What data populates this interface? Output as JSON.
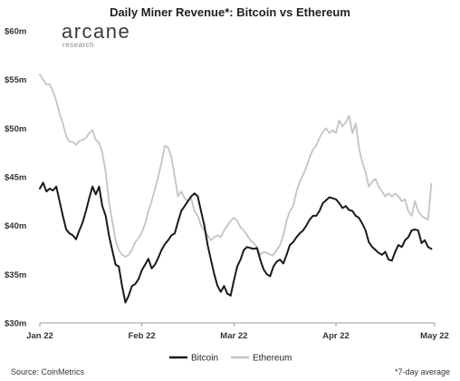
{
  "chart_data": {
    "type": "line",
    "title": "Daily Miner Revenue*: Bitcoin vs Ethereum",
    "xlabel": "",
    "ylabel": "",
    "ylim": [
      30,
      60
    ],
    "y_ticks": [
      {
        "value": 30,
        "label": "$30m"
      },
      {
        "value": 35,
        "label": "$35m"
      },
      {
        "value": 40,
        "label": "$40m"
      },
      {
        "value": 45,
        "label": "$45m"
      },
      {
        "value": 50,
        "label": "$50m"
      },
      {
        "value": 55,
        "label": "$55m"
      },
      {
        "value": 60,
        "label": "$60m"
      }
    ],
    "x_range": [
      "2022-01-01",
      "2022-05-01"
    ],
    "x_ticks": [
      {
        "date": "2022-01-01",
        "label": "Jan 22"
      },
      {
        "date": "2022-02-01",
        "label": "Feb 22"
      },
      {
        "date": "2022-03-01",
        "label": "Mar 22"
      },
      {
        "date": "2022-04-01",
        "label": "Apr 22"
      },
      {
        "date": "2022-05-01",
        "label": "May 22"
      }
    ],
    "legend_position": "bottom-center",
    "grid": false,
    "series": [
      {
        "name": "Bitcoin",
        "color": "#1a1a1a",
        "points": [
          [
            "2022-01-01",
            43.8
          ],
          [
            "2022-01-02",
            44.4
          ],
          [
            "2022-01-03",
            43.5
          ],
          [
            "2022-01-04",
            43.8
          ],
          [
            "2022-01-05",
            43.6
          ],
          [
            "2022-01-06",
            44.0
          ],
          [
            "2022-01-07",
            42.5
          ],
          [
            "2022-01-08",
            41.0
          ],
          [
            "2022-01-09",
            39.6
          ],
          [
            "2022-01-10",
            39.2
          ],
          [
            "2022-01-11",
            39.0
          ],
          [
            "2022-01-12",
            38.6
          ],
          [
            "2022-01-13",
            39.5
          ],
          [
            "2022-01-14",
            40.3
          ],
          [
            "2022-01-15",
            41.5
          ],
          [
            "2022-01-16",
            42.8
          ],
          [
            "2022-01-17",
            44.0
          ],
          [
            "2022-01-18",
            43.2
          ],
          [
            "2022-01-19",
            44.0
          ],
          [
            "2022-01-20",
            42.0
          ],
          [
            "2022-01-21",
            41.0
          ],
          [
            "2022-01-22",
            39.0
          ],
          [
            "2022-01-23",
            37.5
          ],
          [
            "2022-01-24",
            36.0
          ],
          [
            "2022-01-25",
            35.8
          ],
          [
            "2022-01-26",
            33.8
          ],
          [
            "2022-01-27",
            32.1
          ],
          [
            "2022-01-28",
            32.8
          ],
          [
            "2022-01-29",
            33.8
          ],
          [
            "2022-01-30",
            34.0
          ],
          [
            "2022-01-31",
            34.5
          ],
          [
            "2022-02-01",
            35.4
          ],
          [
            "2022-02-02",
            36.0
          ],
          [
            "2022-02-03",
            36.6
          ],
          [
            "2022-02-04",
            35.6
          ],
          [
            "2022-02-05",
            36.0
          ],
          [
            "2022-02-06",
            36.7
          ],
          [
            "2022-02-07",
            37.5
          ],
          [
            "2022-02-08",
            38.1
          ],
          [
            "2022-02-09",
            38.5
          ],
          [
            "2022-02-10",
            39.0
          ],
          [
            "2022-02-11",
            39.2
          ],
          [
            "2022-02-12",
            40.4
          ],
          [
            "2022-02-13",
            41.5
          ],
          [
            "2022-02-14",
            42.0
          ],
          [
            "2022-02-15",
            42.5
          ],
          [
            "2022-02-16",
            43.0
          ],
          [
            "2022-02-17",
            43.3
          ],
          [
            "2022-02-18",
            43.0
          ],
          [
            "2022-02-19",
            41.5
          ],
          [
            "2022-02-20",
            40.0
          ],
          [
            "2022-02-21",
            38.0
          ],
          [
            "2022-02-22",
            36.5
          ],
          [
            "2022-02-23",
            35.0
          ],
          [
            "2022-02-24",
            33.8
          ],
          [
            "2022-02-25",
            33.2
          ],
          [
            "2022-02-26",
            33.8
          ],
          [
            "2022-02-27",
            33.0
          ],
          [
            "2022-02-28",
            32.8
          ],
          [
            "2022-03-01",
            34.4
          ],
          [
            "2022-03-02",
            35.8
          ],
          [
            "2022-03-03",
            36.5
          ],
          [
            "2022-03-04",
            37.5
          ],
          [
            "2022-03-05",
            37.8
          ],
          [
            "2022-03-06",
            37.7
          ],
          [
            "2022-03-07",
            37.6
          ],
          [
            "2022-03-08",
            37.7
          ],
          [
            "2022-03-09",
            36.5
          ],
          [
            "2022-03-10",
            35.5
          ],
          [
            "2022-03-11",
            35.0
          ],
          [
            "2022-03-12",
            34.8
          ],
          [
            "2022-03-13",
            35.8
          ],
          [
            "2022-03-14",
            36.3
          ],
          [
            "2022-03-15",
            36.5
          ],
          [
            "2022-03-16",
            36.1
          ],
          [
            "2022-03-17",
            37.0
          ],
          [
            "2022-03-18",
            38.0
          ],
          [
            "2022-03-19",
            38.3
          ],
          [
            "2022-03-20",
            38.8
          ],
          [
            "2022-03-21",
            39.2
          ],
          [
            "2022-03-22",
            39.5
          ],
          [
            "2022-03-23",
            40.0
          ],
          [
            "2022-03-24",
            40.6
          ],
          [
            "2022-03-25",
            41.0
          ],
          [
            "2022-03-26",
            41.0
          ],
          [
            "2022-03-27",
            41.5
          ],
          [
            "2022-03-28",
            42.3
          ],
          [
            "2022-03-29",
            42.6
          ],
          [
            "2022-03-30",
            42.9
          ],
          [
            "2022-03-31",
            42.8
          ],
          [
            "2022-04-01",
            42.7
          ],
          [
            "2022-04-02",
            42.3
          ],
          [
            "2022-04-03",
            41.8
          ],
          [
            "2022-04-04",
            42.0
          ],
          [
            "2022-04-05",
            41.6
          ],
          [
            "2022-04-06",
            41.5
          ],
          [
            "2022-04-07",
            41.0
          ],
          [
            "2022-04-08",
            40.8
          ],
          [
            "2022-04-09",
            40.2
          ],
          [
            "2022-04-10",
            39.5
          ],
          [
            "2022-04-11",
            38.3
          ],
          [
            "2022-04-12",
            37.8
          ],
          [
            "2022-04-13",
            37.5
          ],
          [
            "2022-04-14",
            37.2
          ],
          [
            "2022-04-15",
            37.0
          ],
          [
            "2022-04-16",
            37.3
          ],
          [
            "2022-04-17",
            36.5
          ],
          [
            "2022-04-18",
            36.4
          ],
          [
            "2022-04-19",
            37.3
          ],
          [
            "2022-04-20",
            38.0
          ],
          [
            "2022-04-21",
            37.8
          ],
          [
            "2022-04-22",
            38.5
          ],
          [
            "2022-04-23",
            38.8
          ],
          [
            "2022-04-24",
            39.5
          ],
          [
            "2022-04-25",
            39.6
          ],
          [
            "2022-04-26",
            39.5
          ],
          [
            "2022-04-27",
            38.2
          ],
          [
            "2022-04-28",
            38.5
          ],
          [
            "2022-04-29",
            37.8
          ],
          [
            "2022-04-30",
            37.6
          ]
        ]
      },
      {
        "name": "Ethereum",
        "color": "#c4c4c4",
        "points": [
          [
            "2022-01-01",
            55.5
          ],
          [
            "2022-01-02",
            55.0
          ],
          [
            "2022-01-03",
            54.5
          ],
          [
            "2022-01-04",
            54.5
          ],
          [
            "2022-01-05",
            53.8
          ],
          [
            "2022-01-06",
            52.8
          ],
          [
            "2022-01-07",
            51.5
          ],
          [
            "2022-01-08",
            50.5
          ],
          [
            "2022-01-09",
            49.2
          ],
          [
            "2022-01-10",
            48.6
          ],
          [
            "2022-01-11",
            48.6
          ],
          [
            "2022-01-12",
            48.3
          ],
          [
            "2022-01-13",
            48.7
          ],
          [
            "2022-01-14",
            48.8
          ],
          [
            "2022-01-15",
            49.0
          ],
          [
            "2022-01-16",
            49.5
          ],
          [
            "2022-01-17",
            49.8
          ],
          [
            "2022-01-18",
            48.8
          ],
          [
            "2022-01-19",
            48.5
          ],
          [
            "2022-01-20",
            47.5
          ],
          [
            "2022-01-21",
            45.5
          ],
          [
            "2022-01-22",
            42.5
          ],
          [
            "2022-01-23",
            40.5
          ],
          [
            "2022-01-24",
            38.5
          ],
          [
            "2022-01-25",
            37.5
          ],
          [
            "2022-01-26",
            37.0
          ],
          [
            "2022-01-27",
            36.8
          ],
          [
            "2022-01-28",
            37.0
          ],
          [
            "2022-01-29",
            37.5
          ],
          [
            "2022-01-30",
            38.3
          ],
          [
            "2022-01-31",
            38.7
          ],
          [
            "2022-02-01",
            39.3
          ],
          [
            "2022-02-02",
            40.2
          ],
          [
            "2022-02-03",
            41.5
          ],
          [
            "2022-02-04",
            42.5
          ],
          [
            "2022-02-05",
            43.8
          ],
          [
            "2022-02-06",
            45.0
          ],
          [
            "2022-02-07",
            46.5
          ],
          [
            "2022-02-08",
            48.2
          ],
          [
            "2022-02-09",
            48.0
          ],
          [
            "2022-02-10",
            47.0
          ],
          [
            "2022-02-11",
            45.0
          ],
          [
            "2022-02-12",
            43.0
          ],
          [
            "2022-02-13",
            43.5
          ],
          [
            "2022-02-14",
            42.8
          ],
          [
            "2022-02-15",
            42.5
          ],
          [
            "2022-02-16",
            42.8
          ],
          [
            "2022-02-17",
            41.5
          ],
          [
            "2022-02-18",
            41.0
          ],
          [
            "2022-02-19",
            40.0
          ],
          [
            "2022-02-20",
            39.5
          ],
          [
            "2022-02-21",
            39.0
          ],
          [
            "2022-02-22",
            38.5
          ],
          [
            "2022-02-23",
            38.8
          ],
          [
            "2022-02-24",
            39.0
          ],
          [
            "2022-02-25",
            38.8
          ],
          [
            "2022-02-26",
            39.5
          ],
          [
            "2022-02-27",
            40.0
          ],
          [
            "2022-02-28",
            40.5
          ],
          [
            "2022-03-01",
            40.8
          ],
          [
            "2022-03-02",
            40.5
          ],
          [
            "2022-03-03",
            39.8
          ],
          [
            "2022-03-04",
            39.5
          ],
          [
            "2022-03-05",
            39.0
          ],
          [
            "2022-03-06",
            38.5
          ],
          [
            "2022-03-07",
            38.2
          ],
          [
            "2022-03-08",
            37.8
          ],
          [
            "2022-03-09",
            37.0
          ],
          [
            "2022-03-10",
            37.3
          ],
          [
            "2022-03-11",
            37.2
          ],
          [
            "2022-03-12",
            37.0
          ],
          [
            "2022-03-13",
            37.0
          ],
          [
            "2022-03-14",
            37.5
          ],
          [
            "2022-03-15",
            38.0
          ],
          [
            "2022-03-16",
            39.0
          ],
          [
            "2022-03-17",
            40.5
          ],
          [
            "2022-03-18",
            41.5
          ],
          [
            "2022-03-19",
            42.0
          ],
          [
            "2022-03-20",
            43.5
          ],
          [
            "2022-03-21",
            44.5
          ],
          [
            "2022-03-22",
            45.2
          ],
          [
            "2022-03-23",
            46.0
          ],
          [
            "2022-03-24",
            47.0
          ],
          [
            "2022-03-25",
            47.8
          ],
          [
            "2022-03-26",
            48.2
          ],
          [
            "2022-03-27",
            49.0
          ],
          [
            "2022-03-28",
            49.6
          ],
          [
            "2022-03-29",
            50.0
          ],
          [
            "2022-03-30",
            49.5
          ],
          [
            "2022-03-31",
            49.8
          ],
          [
            "2022-04-01",
            49.5
          ],
          [
            "2022-04-02",
            50.8
          ],
          [
            "2022-04-03",
            50.2
          ],
          [
            "2022-04-04",
            50.6
          ],
          [
            "2022-04-05",
            51.3
          ],
          [
            "2022-04-06",
            49.5
          ],
          [
            "2022-04-07",
            50.5
          ],
          [
            "2022-04-08",
            48.0
          ],
          [
            "2022-04-09",
            46.5
          ],
          [
            "2022-04-10",
            45.5
          ],
          [
            "2022-04-11",
            44.0
          ],
          [
            "2022-04-12",
            44.5
          ],
          [
            "2022-04-13",
            44.8
          ],
          [
            "2022-04-14",
            44.0
          ],
          [
            "2022-04-15",
            43.5
          ],
          [
            "2022-04-16",
            43.0
          ],
          [
            "2022-04-17",
            43.3
          ],
          [
            "2022-04-18",
            43.0
          ],
          [
            "2022-04-19",
            43.3
          ],
          [
            "2022-04-20",
            43.0
          ],
          [
            "2022-04-21",
            42.5
          ],
          [
            "2022-04-22",
            42.7
          ],
          [
            "2022-04-23",
            41.5
          ],
          [
            "2022-04-24",
            41.0
          ],
          [
            "2022-04-25",
            42.5
          ],
          [
            "2022-04-26",
            41.5
          ],
          [
            "2022-04-27",
            41.0
          ],
          [
            "2022-04-28",
            40.8
          ],
          [
            "2022-04-29",
            40.6
          ],
          [
            "2022-04-30",
            44.3
          ]
        ]
      }
    ]
  },
  "brand": {
    "name": "arcane",
    "tagline": "research"
  },
  "footer": {
    "source": "Source: CoinMetrics",
    "note": "*7-day average"
  }
}
